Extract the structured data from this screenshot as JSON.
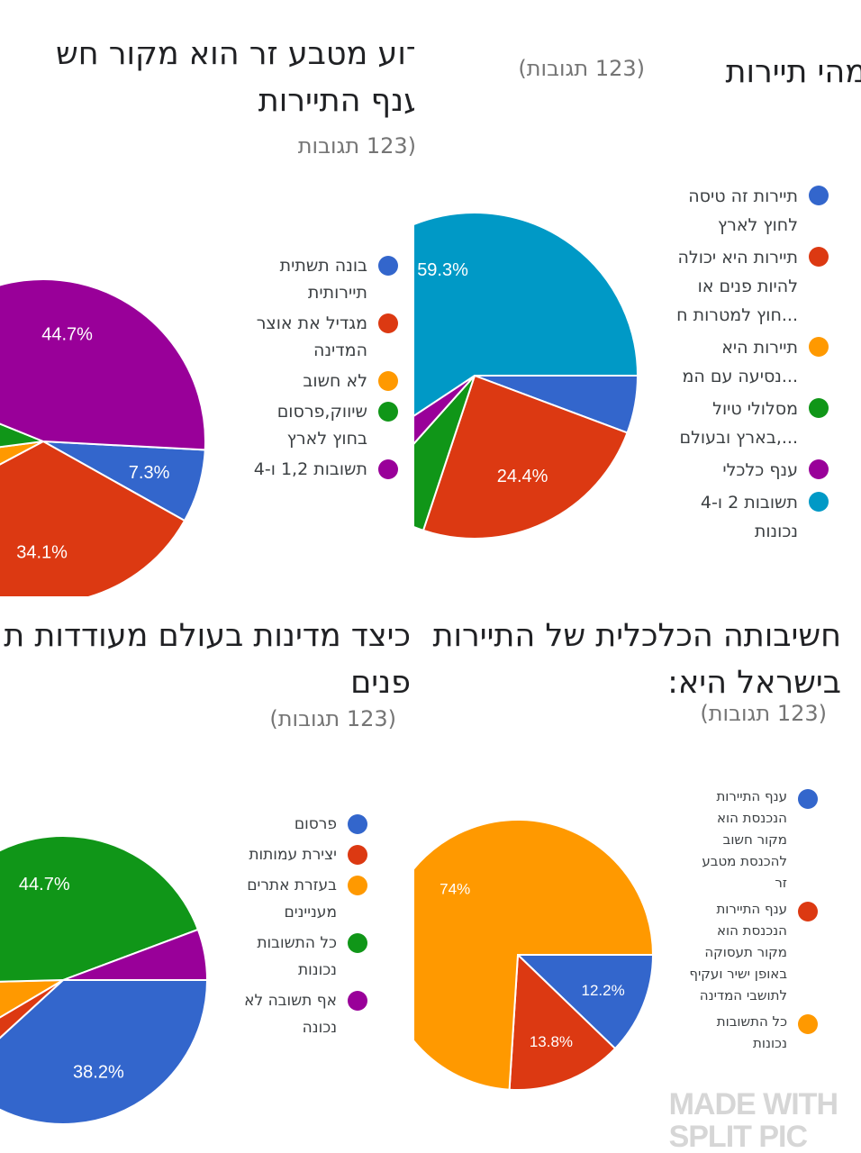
{
  "colors": {
    "blue": "#3366cc",
    "red": "#dc3912",
    "orange": "#ff9900",
    "green": "#109618",
    "purple": "#990099",
    "cyan": "#0099c6"
  },
  "chart_data": [
    {
      "type": "pie",
      "title": "למה כדאי לנצל את העובדה שמטבע זר...",
      "title_lines": [
        "דוע מטבע זר הוא מקור חש",
        "ענף התיירות"
      ],
      "responses": "(123 תגובות",
      "categories": [
        "בונה תשתית תיירותית",
        "מגדיל את אוצר המדינה",
        "לא חשוב",
        "שיווק,פרסום בחוץ לארץ",
        "תשובות 1,2 ו-4"
      ],
      "legend_lines": [
        [
          "בונה תשתית",
          "תיירותית"
        ],
        [
          "מגדיל את אוצר",
          "המדינה"
        ],
        [
          "לא חשוב"
        ],
        [
          "שיווק,פרסום",
          "בחוץ לארץ"
        ],
        [
          "תשובות 1,2 ו-4"
        ]
      ],
      "values": [
        7.3,
        34.1,
        5.7,
        8.2,
        44.7
      ],
      "labels": [
        "7.3%",
        "34.1%",
        "",
        "",
        "44.7%"
      ],
      "colors": [
        "#3366cc",
        "#dc3912",
        "#ff9900",
        "#109618",
        "#990099"
      ],
      "legend": "right"
    },
    {
      "type": "pie",
      "title_lines": [
        "מהי תיירות"
      ],
      "responses": "(123 תגובות)",
      "categories": [
        "תיירות זה טיסה לחוץ לארץ",
        "תיירות היא יכולה להיות פנים או חוץ למטרות ח...",
        "תיירות היא נסיעה עם המ...",
        "מסלולי טיול בארץ ובעולם,...",
        "ענף כלכלי",
        "תשובות 2 ו-4 נכונות"
      ],
      "legend_lines": [
        [
          "תיירות זה טיסה",
          "לחוץ לארץ"
        ],
        [
          "תיירות היא יכולה",
          "להיות פנים או",
          "...חוץ למטרות ח"
        ],
        [
          "תיירות היא",
          "...נסיעה עם המ"
        ],
        [
          "מסלולי טיול",
          "...,בארץ ובעולם"
        ],
        [
          "ענף כלכלי"
        ],
        [
          "תשובות 2 ו-4",
          "נכונות"
        ]
      ],
      "values": [
        5.7,
        24.4,
        0,
        6.5,
        4.1,
        59.3
      ],
      "labels": [
        "",
        "24.4%",
        "",
        "",
        "",
        "59.3%"
      ],
      "colors": [
        "#3366cc",
        "#dc3912",
        "#ff9900",
        "#109618",
        "#990099",
        "#0099c6"
      ],
      "legend": "right"
    },
    {
      "type": "pie",
      "title_lines": [
        "כיצד מדינות בעולם מעודדות ת",
        "פנים"
      ],
      "responses": "(123 תגובות)",
      "categories": [
        "פרסום",
        "יצירת עמותות",
        "בעזרת אתרים מעניינים",
        "כל התשובות נכונות",
        "אף תשובה לא נכונה"
      ],
      "legend_lines": [
        [
          "פרסום"
        ],
        [
          "יצירת עמותות"
        ],
        [
          "בעזרת אתרים",
          "מעניינים"
        ],
        [
          "כל התשובות",
          "נכונות"
        ],
        [
          "אף תשובה לא",
          "נכונה"
        ]
      ],
      "values": [
        38.2,
        3.3,
        8.1,
        44.7,
        5.7
      ],
      "labels": [
        "38.2%",
        "",
        "",
        "44.7%",
        ""
      ],
      "colors": [
        "#3366cc",
        "#dc3912",
        "#ff9900",
        "#109618",
        "#990099"
      ],
      "legend": "right"
    },
    {
      "type": "pie",
      "title_lines": [
        "חשיבותה הכלכלית של התיירות",
        "בישראל היא:"
      ],
      "responses": "(123 תגובות)",
      "categories": [
        "ענף התיירות הנכנסת הוא מקור חשוב להכנסת מטבע זר",
        "ענף התיירות הנכנסת הוא מקור תעסוקה באופן ישיר ועקיף לתושבי המדינה",
        "כל התשובות נכונות"
      ],
      "legend_lines": [
        [
          "ענף התיירות",
          "הנכנסת הוא",
          "מקור חשוב",
          "להכנסת מטבע",
          "זר"
        ],
        [
          "ענף התיירות",
          "הנכנסת הוא",
          "מקור תעסוקה",
          "באופן ישיר ועקיף",
          "לתושבי המדינה"
        ],
        [
          "כל התשובות",
          "נכונות"
        ]
      ],
      "values": [
        12.2,
        13.8,
        74
      ],
      "labels": [
        "12.2%",
        "13.8%",
        "74%"
      ],
      "colors": [
        "#3366cc",
        "#dc3912",
        "#ff9900"
      ],
      "legend": "right"
    }
  ],
  "watermark": [
    "MADE WITH",
    "SPLIT PIC"
  ]
}
